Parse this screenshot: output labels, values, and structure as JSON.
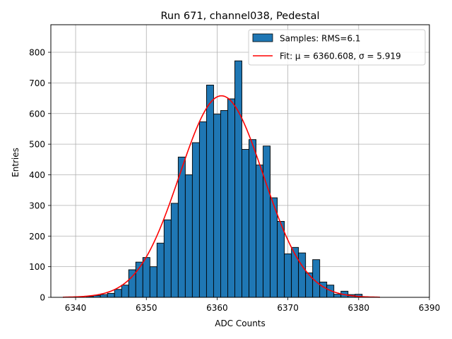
{
  "chart_data": {
    "type": "bar",
    "title": "Run 671, channel038, Pedestal",
    "xlabel": "ADC Counts",
    "ylabel": "Entries",
    "xlim": [
      6336.5,
      6390.0
    ],
    "ylim": [
      0,
      890
    ],
    "xticks": [
      6340,
      6350,
      6360,
      6370,
      6380,
      6390
    ],
    "yticks": [
      0,
      100,
      200,
      300,
      400,
      500,
      600,
      700,
      800
    ],
    "grid": true,
    "legend_position": "top-right",
    "bin_width": 1,
    "bins": [
      {
        "x": 6342,
        "y": 3
      },
      {
        "x": 6343,
        "y": 6
      },
      {
        "x": 6344,
        "y": 9
      },
      {
        "x": 6345,
        "y": 13
      },
      {
        "x": 6346,
        "y": 26
      },
      {
        "x": 6347,
        "y": 40
      },
      {
        "x": 6348,
        "y": 90
      },
      {
        "x": 6349,
        "y": 115
      },
      {
        "x": 6350,
        "y": 130
      },
      {
        "x": 6351,
        "y": 100
      },
      {
        "x": 6352,
        "y": 177
      },
      {
        "x": 6353,
        "y": 253
      },
      {
        "x": 6354,
        "y": 307
      },
      {
        "x": 6355,
        "y": 458
      },
      {
        "x": 6356,
        "y": 400
      },
      {
        "x": 6357,
        "y": 505
      },
      {
        "x": 6358,
        "y": 573
      },
      {
        "x": 6359,
        "y": 693
      },
      {
        "x": 6360,
        "y": 598
      },
      {
        "x": 6361,
        "y": 610
      },
      {
        "x": 6362,
        "y": 648
      },
      {
        "x": 6363,
        "y": 772
      },
      {
        "x": 6364,
        "y": 483
      },
      {
        "x": 6365,
        "y": 515
      },
      {
        "x": 6366,
        "y": 432
      },
      {
        "x": 6367,
        "y": 494
      },
      {
        "x": 6368,
        "y": 325
      },
      {
        "x": 6369,
        "y": 248
      },
      {
        "x": 6370,
        "y": 142
      },
      {
        "x": 6371,
        "y": 163
      },
      {
        "x": 6372,
        "y": 145
      },
      {
        "x": 6373,
        "y": 80
      },
      {
        "x": 6374,
        "y": 123
      },
      {
        "x": 6375,
        "y": 50
      },
      {
        "x": 6376,
        "y": 40
      },
      {
        "x": 6377,
        "y": 10
      },
      {
        "x": 6378,
        "y": 20
      },
      {
        "x": 6379,
        "y": 9
      },
      {
        "x": 6380,
        "y": 10
      }
    ],
    "fit": {
      "mu": 6360.608,
      "sigma": 5.919,
      "amplitude": 658,
      "x_range": [
        6338.2,
        6383.0
      ]
    },
    "series": [
      {
        "name": "Samples: RMS=6.1",
        "kind": "histogram",
        "color": "#1f77b4",
        "edge": "#000000"
      },
      {
        "name": "Fit: μ = 6360.608, σ = 5.919",
        "kind": "line",
        "color": "#ff0000"
      }
    ]
  }
}
